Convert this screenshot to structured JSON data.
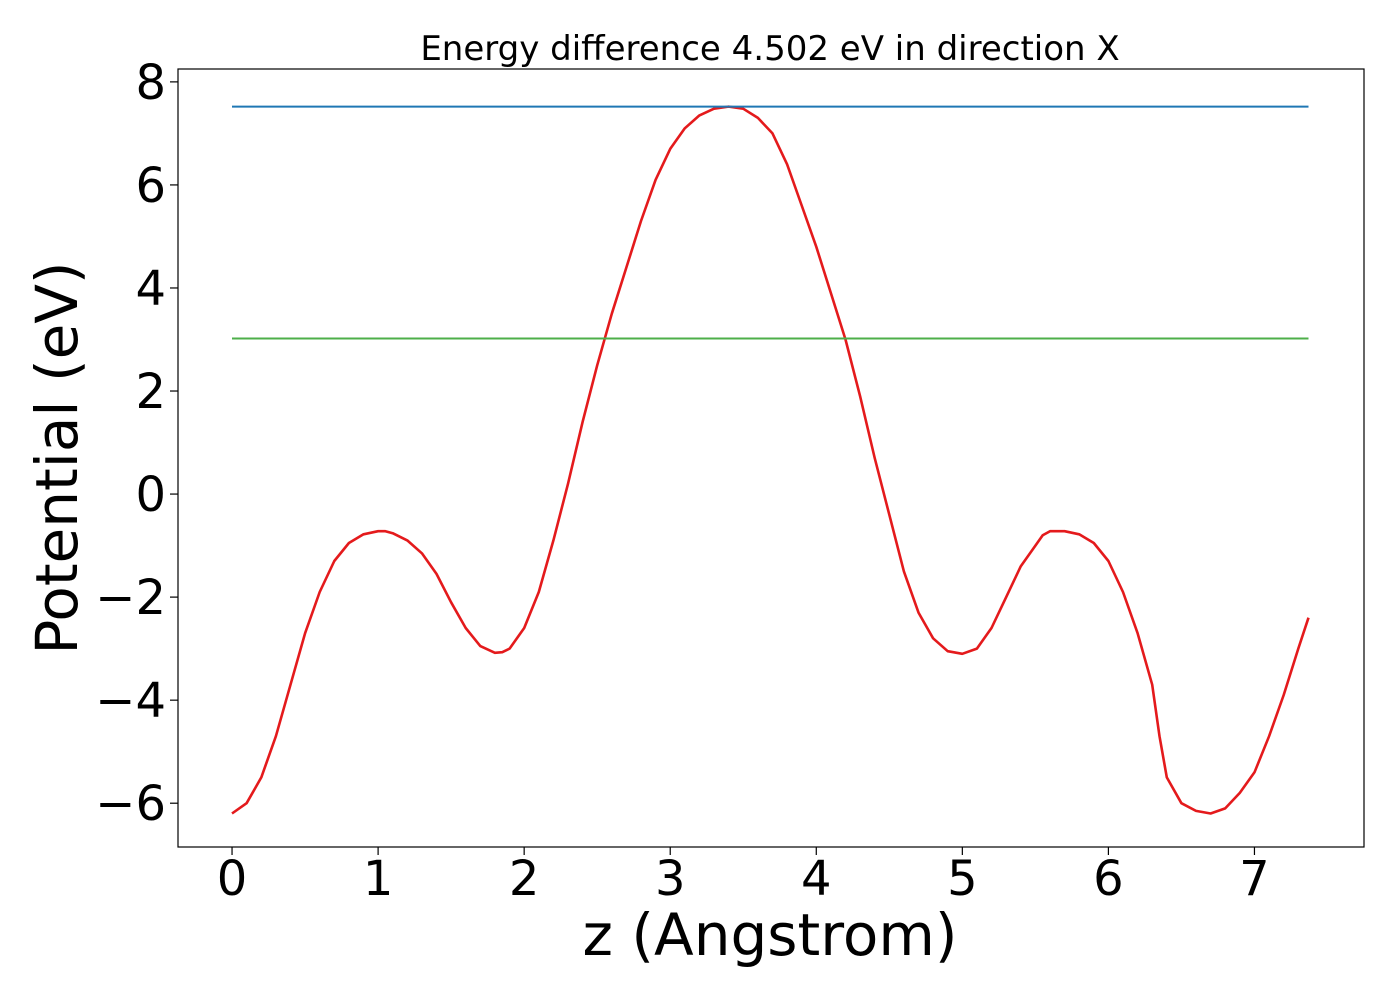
{
  "chart_data": {
    "type": "line",
    "title": "Energy difference 4.502 eV in direction X",
    "xlabel": "z (Angstrom)",
    "ylabel": "Potential (eV)",
    "xlim": [
      -0.37,
      7.75
    ],
    "ylim": [
      -6.85,
      8.25
    ],
    "xticks": [
      0,
      1,
      2,
      3,
      4,
      5,
      6,
      7
    ],
    "xtick_labels": [
      "0",
      "1",
      "2",
      "3",
      "4",
      "5",
      "6",
      "7"
    ],
    "yticks": [
      -6,
      -4,
      -2,
      0,
      2,
      4,
      6,
      8
    ],
    "ytick_labels": [
      "−6",
      "−4",
      "−2",
      "0",
      "2",
      "4",
      "6",
      "8"
    ],
    "grid": false,
    "legend": false,
    "series": [
      {
        "color": "#e41a1c",
        "x": [
          0.0,
          0.1,
          0.2,
          0.3,
          0.4,
          0.5,
          0.6,
          0.7,
          0.8,
          0.9,
          1.0,
          1.05,
          1.1,
          1.2,
          1.3,
          1.4,
          1.5,
          1.6,
          1.7,
          1.8,
          1.85,
          1.9,
          2.0,
          2.1,
          2.2,
          2.3,
          2.4,
          2.5,
          2.6,
          2.7,
          2.8,
          2.9,
          3.0,
          3.1,
          3.2,
          3.3,
          3.4,
          3.5,
          3.6,
          3.7,
          3.8,
          3.9,
          4.0,
          4.1,
          4.2,
          4.3,
          4.4,
          4.5,
          4.6,
          4.7,
          4.8,
          4.9,
          5.0,
          5.1,
          5.2,
          5.3,
          5.4,
          5.5,
          5.55,
          5.6,
          5.7,
          5.8,
          5.9,
          6.0,
          6.1,
          6.2,
          6.3,
          6.35,
          6.4,
          6.5,
          6.6,
          6.7,
          6.8,
          6.9,
          7.0,
          7.1,
          7.2,
          7.3,
          7.37
        ],
        "y": [
          -6.2,
          -6.0,
          -5.5,
          -4.7,
          -3.7,
          -2.7,
          -1.9,
          -1.3,
          -0.95,
          -0.78,
          -0.72,
          -0.72,
          -0.76,
          -0.9,
          -1.15,
          -1.55,
          -2.1,
          -2.6,
          -2.95,
          -3.08,
          -3.07,
          -3.0,
          -2.6,
          -1.9,
          -0.9,
          0.2,
          1.4,
          2.5,
          3.5,
          4.4,
          5.3,
          6.1,
          6.7,
          7.1,
          7.35,
          7.48,
          7.52,
          7.48,
          7.3,
          7.0,
          6.4,
          5.6,
          4.8,
          3.9,
          3.0,
          1.9,
          0.7,
          -0.4,
          -1.5,
          -2.3,
          -2.8,
          -3.05,
          -3.1,
          -3.0,
          -2.6,
          -2.0,
          -1.4,
          -1.0,
          -0.8,
          -0.72,
          -0.72,
          -0.78,
          -0.95,
          -1.3,
          -1.9,
          -2.7,
          -3.7,
          -4.7,
          -5.5,
          -6.0,
          -6.15,
          -6.2,
          -6.1,
          -5.8,
          -5.4,
          -4.7,
          -3.9,
          -3.0,
          -2.4
        ]
      },
      {
        "color": "#1f77b4",
        "x": [
          0.0,
          7.37
        ],
        "y": [
          7.52,
          7.52
        ]
      },
      {
        "color": "#4daf4a",
        "x": [
          0.0,
          7.37
        ],
        "y": [
          3.02,
          3.02
        ]
      }
    ]
  }
}
